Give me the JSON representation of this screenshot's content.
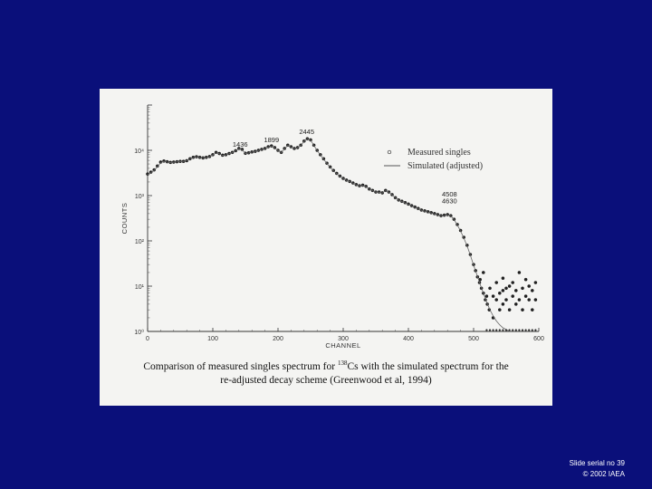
{
  "caption": {
    "text_before": "Comparison of measured singles spectrum for ",
    "isotope_mass": "138",
    "text_after": "Cs with the simulated spectrum for the",
    "line2": "re-adjusted decay scheme (Greenwood et al, 1994)"
  },
  "footer": {
    "line1": "Slide serial no 39",
    "line2": "© 2002 IAEA"
  },
  "chart_data": {
    "type": "scatter",
    "xlabel": "CHANNEL",
    "ylabel": "COUNTS",
    "xlim": [
      0,
      600
    ],
    "ylim_log10": [
      0,
      5
    ],
    "log_y": true,
    "x_ticks": [
      "0",
      "100",
      "200",
      "300",
      "400",
      "500",
      "600"
    ],
    "y_ticks": [
      "10⁰",
      "10¹",
      "10²",
      "10³",
      "10⁴"
    ],
    "peak_labels": [
      {
        "text": "1436",
        "x": 142,
        "y": 10000
      },
      {
        "text": "1899",
        "x": 190,
        "y": 12500
      },
      {
        "text": "2445",
        "x": 244,
        "y": 19000
      },
      {
        "text": "4508",
        "x": 463,
        "y": 800
      },
      {
        "text": "4630",
        "x": 463,
        "y": 560
      }
    ],
    "legend": {
      "placement": "top-right",
      "entries": [
        "Measured singles",
        "Simulated (adjusted)"
      ]
    },
    "series": [
      {
        "name": "Measured singles",
        "marker": "circle",
        "points": [
          [
            0,
            3000
          ],
          [
            5,
            3300
          ],
          [
            10,
            3700
          ],
          [
            15,
            4500
          ],
          [
            20,
            5500
          ],
          [
            25,
            5800
          ],
          [
            30,
            5600
          ],
          [
            35,
            5400
          ],
          [
            40,
            5500
          ],
          [
            45,
            5600
          ],
          [
            50,
            5700
          ],
          [
            55,
            5700
          ],
          [
            60,
            5900
          ],
          [
            65,
            6500
          ],
          [
            70,
            7000
          ],
          [
            75,
            7200
          ],
          [
            80,
            7000
          ],
          [
            85,
            6800
          ],
          [
            90,
            7000
          ],
          [
            95,
            7300
          ],
          [
            100,
            8000
          ],
          [
            105,
            9000
          ],
          [
            110,
            8500
          ],
          [
            115,
            7800
          ],
          [
            120,
            8000
          ],
          [
            125,
            8500
          ],
          [
            130,
            9000
          ],
          [
            135,
            9800
          ],
          [
            140,
            11000
          ],
          [
            145,
            10500
          ],
          [
            150,
            8600
          ],
          [
            155,
            8800
          ],
          [
            160,
            9200
          ],
          [
            165,
            9500
          ],
          [
            170,
            10000
          ],
          [
            175,
            10500
          ],
          [
            180,
            11000
          ],
          [
            185,
            12000
          ],
          [
            190,
            12500
          ],
          [
            195,
            11500
          ],
          [
            200,
            10000
          ],
          [
            205,
            9000
          ],
          [
            210,
            11000
          ],
          [
            215,
            13000
          ],
          [
            220,
            12000
          ],
          [
            225,
            11000
          ],
          [
            230,
            11500
          ],
          [
            235,
            13000
          ],
          [
            240,
            16000
          ],
          [
            245,
            18000
          ],
          [
            250,
            17000
          ],
          [
            255,
            13000
          ],
          [
            260,
            10000
          ],
          [
            265,
            8000
          ],
          [
            270,
            6500
          ],
          [
            275,
            5200
          ],
          [
            280,
            4300
          ],
          [
            285,
            3600
          ],
          [
            290,
            3100
          ],
          [
            295,
            2700
          ],
          [
            300,
            2400
          ],
          [
            305,
            2200
          ],
          [
            310,
            2050
          ],
          [
            315,
            1900
          ],
          [
            320,
            1750
          ],
          [
            325,
            1650
          ],
          [
            330,
            1700
          ],
          [
            335,
            1600
          ],
          [
            340,
            1400
          ],
          [
            345,
            1300
          ],
          [
            350,
            1200
          ],
          [
            355,
            1200
          ],
          [
            360,
            1150
          ],
          [
            365,
            1300
          ],
          [
            370,
            1200
          ],
          [
            375,
            1050
          ],
          [
            380,
            900
          ],
          [
            385,
            800
          ],
          [
            390,
            750
          ],
          [
            395,
            700
          ],
          [
            400,
            650
          ],
          [
            405,
            600
          ],
          [
            410,
            560
          ],
          [
            415,
            520
          ],
          [
            420,
            480
          ],
          [
            425,
            460
          ],
          [
            430,
            440
          ],
          [
            435,
            420
          ],
          [
            440,
            400
          ],
          [
            445,
            380
          ],
          [
            450,
            360
          ],
          [
            455,
            370
          ],
          [
            460,
            380
          ],
          [
            465,
            360
          ],
          [
            470,
            300
          ],
          [
            475,
            230
          ],
          [
            480,
            170
          ],
          [
            485,
            120
          ],
          [
            490,
            80
          ],
          [
            495,
            50
          ],
          [
            500,
            30
          ],
          [
            503,
            22
          ],
          [
            506,
            16
          ],
          [
            509,
            12
          ],
          [
            512,
            9
          ],
          [
            515,
            7
          ],
          [
            518,
            5
          ],
          [
            521,
            4
          ],
          [
            524,
            3
          ],
          [
            510,
            14
          ],
          [
            515,
            20
          ],
          [
            520,
            6
          ],
          [
            525,
            9
          ],
          [
            530,
            6
          ],
          [
            530,
            2
          ],
          [
            535,
            12
          ],
          [
            535,
            5
          ],
          [
            540,
            7
          ],
          [
            540,
            3
          ],
          [
            545,
            15
          ],
          [
            545,
            8
          ],
          [
            545,
            4
          ],
          [
            550,
            5
          ],
          [
            550,
            9
          ],
          [
            555,
            3
          ],
          [
            555,
            10
          ],
          [
            560,
            6
          ],
          [
            560,
            12
          ],
          [
            565,
            8
          ],
          [
            565,
            4
          ],
          [
            570,
            20
          ],
          [
            570,
            5
          ],
          [
            575,
            9
          ],
          [
            575,
            3
          ],
          [
            580,
            14
          ],
          [
            580,
            6
          ],
          [
            585,
            5
          ],
          [
            585,
            10
          ],
          [
            590,
            8
          ],
          [
            590,
            3
          ],
          [
            595,
            12
          ],
          [
            595,
            5
          ]
        ]
      },
      {
        "name": "Simulated (adjusted)",
        "marker": "line",
        "points": [
          [
            0,
            2900
          ],
          [
            5,
            3200
          ],
          [
            10,
            3600
          ],
          [
            15,
            4300
          ],
          [
            20,
            5300
          ],
          [
            25,
            5700
          ],
          [
            30,
            5500
          ],
          [
            35,
            5350
          ],
          [
            40,
            5450
          ],
          [
            45,
            5550
          ],
          [
            50,
            5650
          ],
          [
            55,
            5650
          ],
          [
            60,
            5850
          ],
          [
            65,
            6400
          ],
          [
            70,
            6900
          ],
          [
            75,
            7100
          ],
          [
            80,
            6950
          ],
          [
            85,
            6750
          ],
          [
            90,
            6950
          ],
          [
            95,
            7250
          ],
          [
            100,
            7900
          ],
          [
            105,
            8800
          ],
          [
            110,
            8400
          ],
          [
            115,
            7700
          ],
          [
            120,
            7900
          ],
          [
            125,
            8400
          ],
          [
            130,
            8900
          ],
          [
            135,
            9700
          ],
          [
            140,
            10800
          ],
          [
            145,
            10300
          ],
          [
            150,
            8500
          ],
          [
            155,
            8700
          ],
          [
            160,
            9100
          ],
          [
            165,
            9400
          ],
          [
            170,
            9900
          ],
          [
            175,
            10400
          ],
          [
            180,
            10900
          ],
          [
            185,
            11800
          ],
          [
            190,
            12300
          ],
          [
            195,
            11300
          ],
          [
            200,
            9800
          ],
          [
            205,
            8900
          ],
          [
            210,
            10800
          ],
          [
            215,
            12800
          ],
          [
            220,
            11800
          ],
          [
            225,
            10900
          ],
          [
            230,
            11400
          ],
          [
            235,
            12800
          ],
          [
            240,
            15800
          ],
          [
            245,
            17800
          ],
          [
            250,
            16800
          ],
          [
            255,
            12800
          ],
          [
            260,
            9900
          ],
          [
            265,
            7900
          ],
          [
            270,
            6400
          ],
          [
            275,
            5100
          ],
          [
            280,
            4200
          ],
          [
            285,
            3550
          ],
          [
            290,
            3050
          ],
          [
            295,
            2650
          ],
          [
            300,
            2380
          ],
          [
            305,
            2180
          ],
          [
            310,
            2030
          ],
          [
            315,
            1880
          ],
          [
            320,
            1730
          ],
          [
            325,
            1640
          ],
          [
            330,
            1680
          ],
          [
            335,
            1580
          ],
          [
            340,
            1390
          ],
          [
            345,
            1290
          ],
          [
            350,
            1190
          ],
          [
            355,
            1190
          ],
          [
            360,
            1140
          ],
          [
            365,
            1280
          ],
          [
            370,
            1190
          ],
          [
            375,
            1040
          ],
          [
            380,
            890
          ],
          [
            385,
            790
          ],
          [
            390,
            740
          ],
          [
            395,
            690
          ],
          [
            400,
            640
          ],
          [
            405,
            590
          ],
          [
            410,
            550
          ],
          [
            415,
            510
          ],
          [
            420,
            475
          ],
          [
            425,
            455
          ],
          [
            430,
            435
          ],
          [
            435,
            415
          ],
          [
            440,
            395
          ],
          [
            445,
            375
          ],
          [
            450,
            355
          ],
          [
            455,
            365
          ],
          [
            460,
            375
          ],
          [
            465,
            355
          ],
          [
            470,
            295
          ],
          [
            475,
            225
          ],
          [
            480,
            165
          ],
          [
            485,
            115
          ],
          [
            490,
            78
          ],
          [
            495,
            48
          ],
          [
            500,
            29
          ],
          [
            505,
            18
          ],
          [
            510,
            11
          ],
          [
            515,
            7
          ],
          [
            520,
            4.5
          ],
          [
            525,
            3
          ],
          [
            530,
            2.2
          ],
          [
            535,
            1.7
          ],
          [
            540,
            1.4
          ],
          [
            545,
            1.2
          ],
          [
            550,
            1.1
          ],
          [
            555,
            1.0
          ]
        ]
      },
      {
        "name": "",
        "marker": "dot",
        "points": [
          [
            520,
            1
          ],
          [
            525,
            1
          ],
          [
            530,
            1
          ],
          [
            535,
            1
          ],
          [
            540,
            1
          ],
          [
            545,
            1
          ],
          [
            550,
            1
          ],
          [
            555,
            1
          ],
          [
            560,
            1
          ],
          [
            565,
            1
          ],
          [
            570,
            1
          ],
          [
            575,
            1
          ],
          [
            580,
            1
          ],
          [
            585,
            1
          ],
          [
            590,
            1
          ],
          [
            595,
            1
          ]
        ]
      }
    ]
  }
}
